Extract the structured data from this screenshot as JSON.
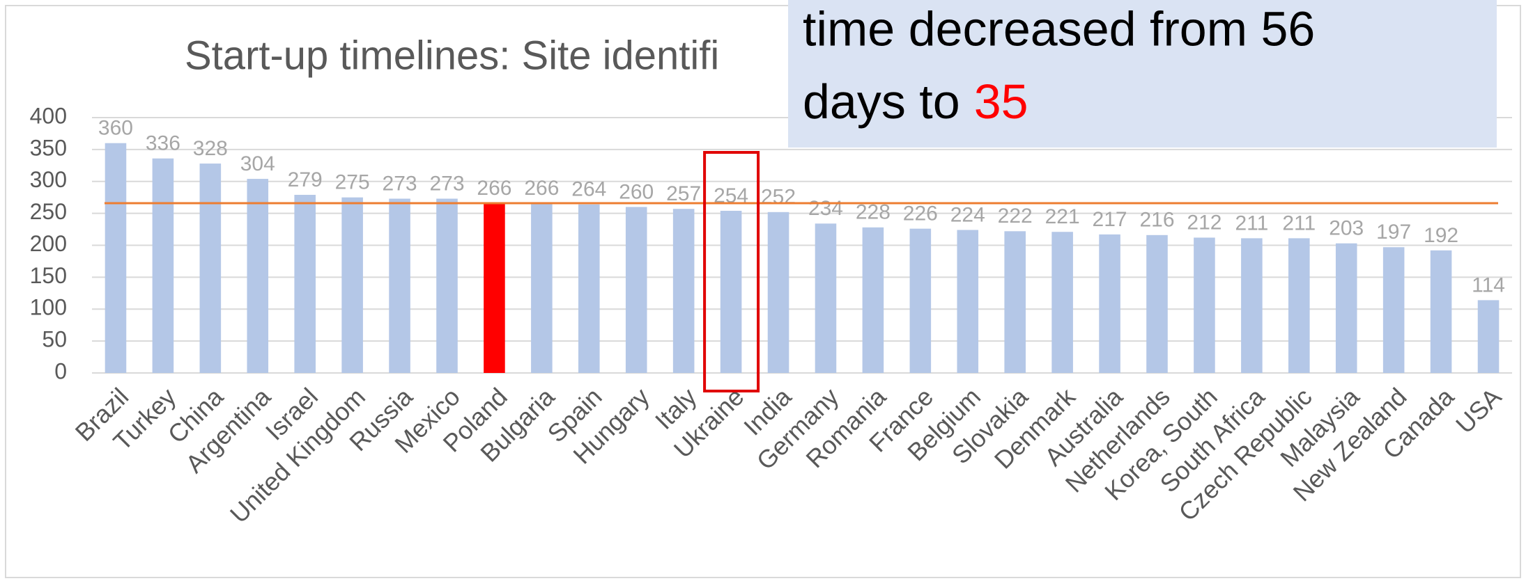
{
  "chart_data": {
    "type": "bar",
    "title": "Start-up timelines: Site identifi",
    "categories": [
      "Brazil",
      "Turkey",
      "China",
      "Argentina",
      "Israel",
      "United Kingdom",
      "Russia",
      "Mexico",
      "Poland",
      "Bulgaria",
      "Spain",
      "Hungary",
      "Italy",
      "Ukraine",
      "India",
      "Germany",
      "Romania",
      "France",
      "Belgium",
      "Slovakia",
      "Denmark",
      "Australia",
      "Netherlands",
      "Korea, South",
      "South Africa",
      "Czech Republic",
      "Malaysia",
      "New Zealand",
      "Canada",
      "USA"
    ],
    "values": [
      360,
      336,
      328,
      304,
      279,
      275,
      273,
      273,
      266,
      266,
      264,
      260,
      257,
      254,
      252,
      234,
      228,
      226,
      224,
      222,
      221,
      217,
      216,
      212,
      211,
      211,
      203,
      197,
      192,
      114
    ],
    "color": "#b4c7e7",
    "highlight_color": "#ff0000",
    "highlight_index": 8,
    "outline_index": 13,
    "outline_color": "#e00000",
    "reference_line": {
      "value": 266,
      "color": "#ed7d31"
    },
    "ylim": [
      0,
      400
    ],
    "yticks": [
      0,
      50,
      100,
      150,
      200,
      250,
      300,
      350,
      400
    ],
    "grid": true,
    "annotation": {
      "line1": "time decreased from 56",
      "line2": "days to",
      "line2_highlight": "35",
      "highlight_color": "#ff0000"
    }
  }
}
